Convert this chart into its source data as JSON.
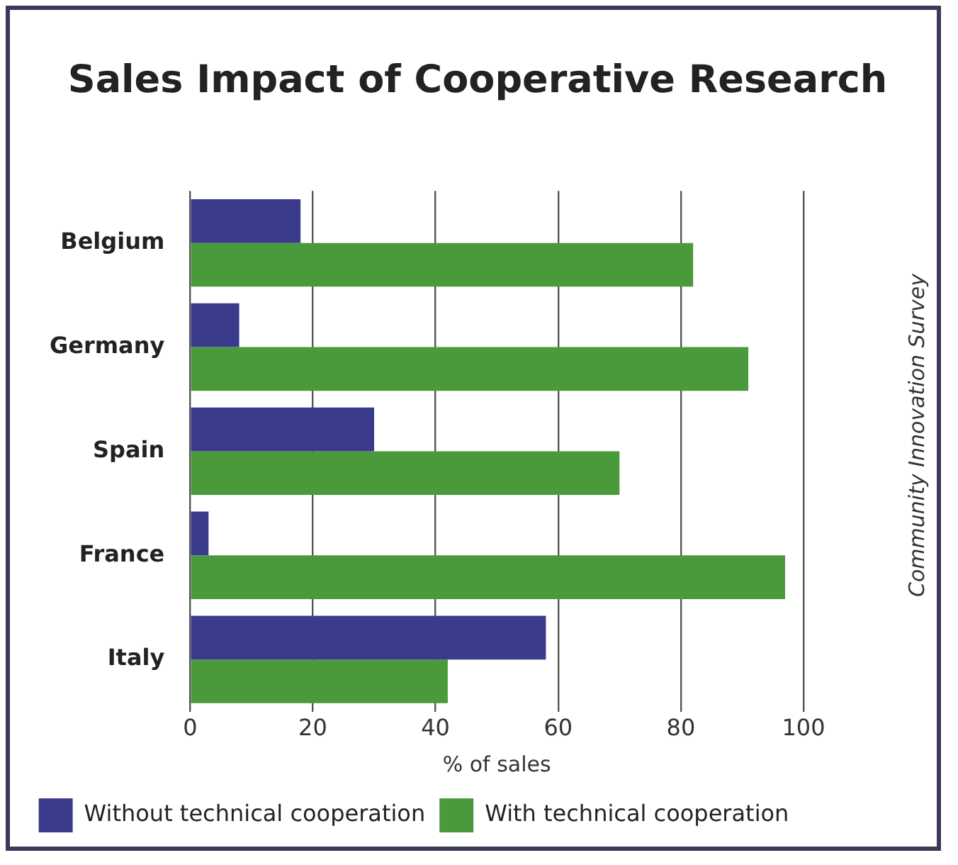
{
  "chart_data": {
    "type": "bar",
    "orientation": "horizontal",
    "title": "Sales Impact of Cooperative Research",
    "xlabel": "% of sales",
    "categories": [
      "Belgium",
      "Germany",
      "Spain",
      "France",
      "Italy"
    ],
    "series": [
      {
        "name": "Without technical cooperation",
        "color": "#3b3b8c",
        "values": [
          18,
          8,
          30,
          3,
          58
        ]
      },
      {
        "name": "With technical cooperation",
        "color": "#4a9a3c",
        "values": [
          82,
          91,
          70,
          97,
          42
        ]
      }
    ],
    "xlim": [
      0,
      100
    ],
    "xticks": [
      0,
      20,
      40,
      60,
      80,
      100
    ],
    "grid": "x",
    "legend": "bottom",
    "annotations": [
      "Community Innovation Survey"
    ]
  }
}
